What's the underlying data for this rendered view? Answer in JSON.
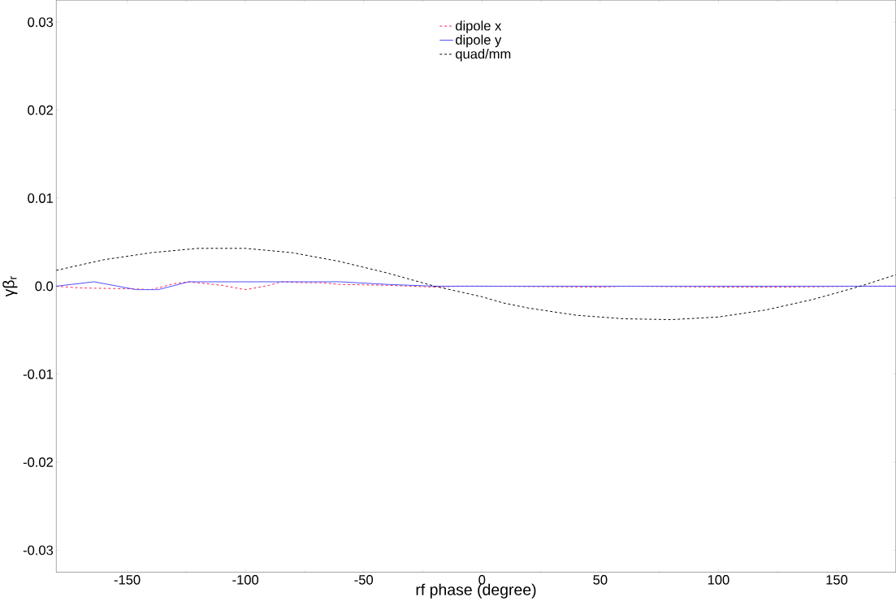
{
  "chart_data": {
    "type": "line",
    "xlabel": "rf phase  (degree)",
    "ylabel": "γβ$_{r}$",
    "xlim": [
      -180,
      175
    ],
    "ylim": [
      -0.0325,
      0.0325
    ],
    "xticks": [
      -150,
      -100,
      -50,
      0,
      50,
      100,
      150
    ],
    "yticks": [
      -0.03,
      -0.02,
      -0.01,
      {
        "value": 0,
        "label": "0.0"
      },
      0.01,
      0.02,
      0.03
    ],
    "grid": false,
    "legend": "top",
    "series": [
      {
        "name": "dipole x",
        "color": "#ff2050",
        "line_style": "dashed",
        "x": [
          -180,
          -170,
          -147,
          -140,
          -130,
          -124,
          -110,
          -100,
          -90,
          -85,
          -75,
          -68,
          -60,
          -40,
          -20,
          -10,
          0,
          50,
          60,
          100,
          130,
          160,
          175
        ],
        "values": [
          0,
          -0.0002,
          -0.0003,
          -0.0004,
          0.0003,
          0.0005,
          0.0001,
          -0.0004,
          0.0001,
          0.0005,
          0.0004,
          0.0004,
          0.0002,
          0.0001,
          -0.0001,
          0,
          0,
          -0.0001,
          0,
          -0.0001,
          -0.0001,
          0,
          0
        ]
      },
      {
        "name": "dipole y",
        "color": "#4a4aff",
        "line_style": "solid",
        "x": [
          -180,
          -164,
          -146,
          -137,
          -124,
          -100,
          -60,
          -40,
          -20,
          0,
          175
        ],
        "values": [
          0,
          0.0005,
          -0.0004,
          -0.0004,
          0.0005,
          0.0005,
          0.0005,
          0.0002,
          0,
          0,
          0
        ]
      },
      {
        "name": "quad/mm",
        "color": "#000000",
        "line_style": "dashed",
        "x": [
          -180,
          -160,
          -140,
          -120,
          -100,
          -80,
          -60,
          -40,
          -20,
          0,
          9,
          20,
          40,
          60,
          80,
          100,
          120,
          140,
          160,
          175
        ],
        "values": [
          0.0018,
          0.003,
          0.0038,
          0.0043,
          0.0043,
          0.0038,
          0.0028,
          0.0015,
          0.0,
          -0.0012,
          -0.0019,
          -0.0025,
          -0.0033,
          -0.0037,
          -0.0038,
          -0.0035,
          -0.0027,
          -0.0015,
          0.0,
          0.0013
        ]
      }
    ]
  }
}
